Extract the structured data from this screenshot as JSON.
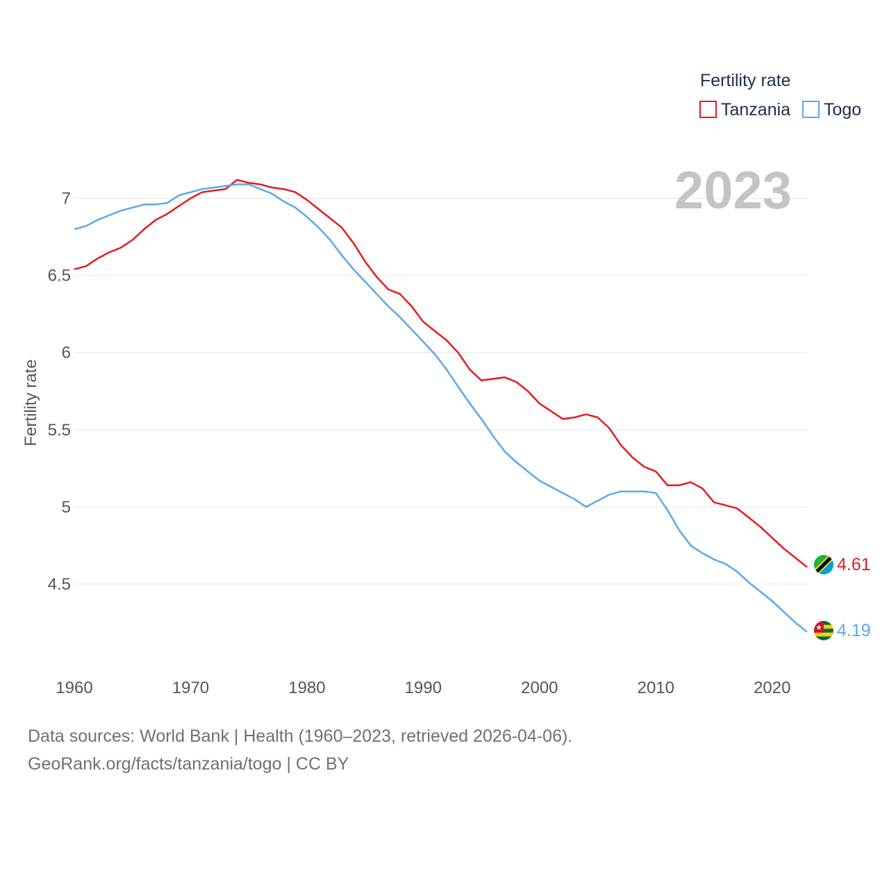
{
  "chart_data": {
    "type": "line",
    "title": "",
    "legend_title": "Fertility rate",
    "ylabel": "Fertility rate",
    "xlabel": "",
    "year_label": "2023",
    "xlim": [
      1960,
      2023
    ],
    "ylim": [
      4.0,
      7.25
    ],
    "x_ticks": [
      1960,
      1970,
      1980,
      1990,
      2000,
      2010,
      2020
    ],
    "y_ticks": [
      {
        "value": 4.5,
        "label": "4.5"
      },
      {
        "value": 5,
        "label": "5"
      },
      {
        "value": 5.5,
        "label": "5.5"
      },
      {
        "value": 6,
        "label": "6"
      },
      {
        "value": 6.5,
        "label": "6.5"
      },
      {
        "value": 7,
        "label": "7"
      }
    ],
    "legend_position": "top-right",
    "x": [
      1960,
      1961,
      1962,
      1963,
      1964,
      1965,
      1966,
      1967,
      1968,
      1969,
      1970,
      1971,
      1972,
      1973,
      1974,
      1975,
      1976,
      1977,
      1978,
      1979,
      1980,
      1981,
      1982,
      1983,
      1984,
      1985,
      1986,
      1987,
      1988,
      1989,
      1990,
      1991,
      1992,
      1993,
      1994,
      1995,
      1996,
      1997,
      1998,
      1999,
      2000,
      2001,
      2002,
      2003,
      2004,
      2005,
      2006,
      2007,
      2008,
      2009,
      2010,
      2011,
      2012,
      2013,
      2014,
      2015,
      2016,
      2017,
      2018,
      2019,
      2020,
      2021,
      2022,
      2023
    ],
    "series": [
      {
        "name": "Tanzania",
        "color": "#e8191d",
        "end_label": "4.61",
        "values": [
          6.54,
          6.56,
          6.61,
          6.65,
          6.68,
          6.73,
          6.8,
          6.86,
          6.9,
          6.95,
          7.0,
          7.04,
          7.05,
          7.06,
          7.12,
          7.1,
          7.09,
          7.07,
          7.06,
          7.04,
          6.99,
          6.93,
          6.87,
          6.81,
          6.71,
          6.59,
          6.49,
          6.41,
          6.38,
          6.3,
          6.2,
          6.14,
          6.08,
          6.0,
          5.89,
          5.82,
          5.83,
          5.84,
          5.81,
          5.75,
          5.67,
          5.62,
          5.57,
          5.58,
          5.6,
          5.58,
          5.51,
          5.4,
          5.32,
          5.26,
          5.23,
          5.14,
          5.14,
          5.16,
          5.12,
          5.03,
          5.01,
          4.99,
          4.93,
          4.87,
          4.8,
          4.73,
          4.67,
          4.61
        ]
      },
      {
        "name": "Togo",
        "color": "#5ba7e8",
        "end_label": "4.19",
        "values": [
          6.8,
          6.82,
          6.86,
          6.89,
          6.92,
          6.94,
          6.96,
          6.96,
          6.97,
          7.02,
          7.04,
          7.06,
          7.07,
          7.08,
          7.09,
          7.09,
          7.06,
          7.03,
          6.98,
          6.94,
          6.88,
          6.81,
          6.73,
          6.63,
          6.54,
          6.46,
          6.38,
          6.3,
          6.23,
          6.15,
          6.07,
          5.99,
          5.89,
          5.78,
          5.67,
          5.57,
          5.46,
          5.36,
          5.29,
          5.23,
          5.17,
          5.13,
          5.09,
          5.05,
          5.0,
          5.04,
          5.08,
          5.1,
          5.1,
          5.1,
          5.09,
          4.98,
          4.85,
          4.75,
          4.7,
          4.66,
          4.63,
          4.58,
          4.51,
          4.45,
          4.39,
          4.32,
          4.25,
          4.19
        ]
      }
    ]
  },
  "source": {
    "line1": "Data sources: World Bank | Health (1960–2023, retrieved 2026-04-06).",
    "line2": "GeoRank.org/facts/tanzania/togo | CC BY"
  }
}
